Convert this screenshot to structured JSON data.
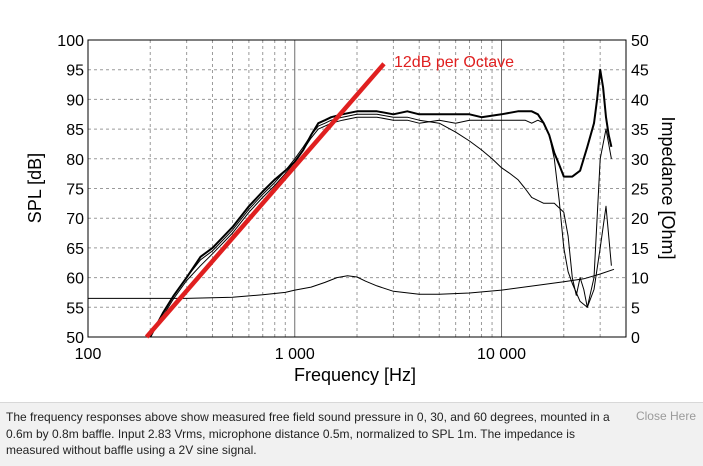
{
  "chart_data": {
    "type": "line",
    "x_scale": "log",
    "xlim": [
      100,
      40000
    ],
    "ylim": [
      50,
      100
    ],
    "y2lim": [
      0,
      50
    ],
    "xlabel": "Frequency [Hz]",
    "ylabel": "SPL [dB]",
    "y2label": "Impedance [Ohm]",
    "x_ticks": [
      100,
      1000,
      10000
    ],
    "x_tick_labels": [
      "100",
      "1 000",
      "10 000"
    ],
    "y_ticks": [
      100,
      95,
      90,
      85,
      80,
      75,
      70,
      65,
      60,
      55,
      50
    ],
    "y2_ticks": [
      50,
      45,
      40,
      35,
      30,
      25,
      20,
      15,
      10,
      5,
      0
    ],
    "grid": true,
    "annotation": {
      "text": "12dB per Octave",
      "color": "#e02020",
      "line": {
        "x": [
          192,
          2700
        ],
        "y": [
          50,
          96
        ]
      }
    },
    "series": [
      {
        "axis": "left",
        "color": "#000000",
        "width": 2.0,
        "x": [
          200,
          230,
          260,
          300,
          350,
          400,
          500,
          600,
          700,
          800,
          900,
          1000,
          1100,
          1200,
          1300,
          1400,
          1500,
          1700,
          2000,
          2500,
          3000,
          3500,
          4000,
          5000,
          6000,
          7000,
          8000,
          10000,
          12000,
          14000,
          15000,
          16000,
          17000,
          18000,
          19000,
          20000,
          22000,
          24000,
          26000,
          28000,
          29000,
          30000,
          31000,
          32000,
          33000,
          34000
        ],
        "y": [
          50,
          54,
          57,
          60,
          63.5,
          65,
          68.5,
          72,
          74.5,
          76.5,
          78,
          79.5,
          81.5,
          84,
          86,
          86.5,
          87,
          87.5,
          88,
          88,
          87.5,
          88,
          87.5,
          87.5,
          87.5,
          87.5,
          87,
          87.5,
          88,
          88,
          87.5,
          86,
          84,
          81,
          79,
          77,
          77,
          78,
          82,
          86,
          90,
          95,
          92,
          87,
          84,
          82
        ]
      },
      {
        "axis": "left",
        "color": "#000000",
        "width": 1.0,
        "x": [
          200,
          230,
          260,
          300,
          350,
          400,
          500,
          600,
          700,
          800,
          900,
          1000,
          1100,
          1200,
          1300,
          1400,
          1500,
          1700,
          2000,
          2500,
          3000,
          3500,
          4000,
          5000,
          6000,
          7000,
          8000,
          9000,
          10000,
          11000,
          12000,
          13000,
          14000,
          16000,
          18000,
          20000,
          21000,
          22000,
          23000,
          24000,
          25000,
          26000,
          28000,
          30000,
          32000,
          34000
        ],
        "y": [
          50,
          54,
          57,
          60,
          63,
          64.5,
          68,
          71.5,
          74,
          76,
          78,
          80,
          82,
          84,
          85.5,
          86,
          86.5,
          87,
          87.5,
          87.5,
          87,
          87,
          86.5,
          86,
          84.5,
          83,
          81.5,
          80,
          78.5,
          77.5,
          76.5,
          75,
          73.5,
          72.5,
          72.5,
          71,
          67,
          60,
          57,
          60,
          58,
          55,
          60,
          80,
          85,
          80
        ]
      },
      {
        "axis": "left",
        "color": "#000000",
        "width": 1.0,
        "x": [
          200,
          230,
          260,
          300,
          350,
          400,
          500,
          600,
          700,
          800,
          900,
          1000,
          1100,
          1200,
          1300,
          1400,
          1500,
          1700,
          2000,
          2500,
          3000,
          3500,
          4000,
          5000,
          6000,
          7000,
          8000,
          9000,
          10000,
          11000,
          12000,
          13000,
          14000,
          15000,
          16000,
          17000,
          18000,
          19000,
          20000,
          21000,
          22000,
          24000,
          26000,
          28000,
          30000,
          32000,
          34000
        ],
        "y": [
          50,
          53.5,
          56.5,
          59.5,
          62,
          64,
          67.5,
          71,
          73.5,
          75.5,
          77.5,
          79.5,
          81.5,
          83.5,
          85,
          85.5,
          86,
          86.5,
          87,
          87,
          86.5,
          86.5,
          86,
          86.5,
          86,
          86.5,
          86.5,
          86.5,
          86.5,
          86.5,
          86.5,
          86.5,
          86,
          86.5,
          86,
          84,
          80,
          73,
          65,
          61,
          59,
          56,
          55,
          58,
          65,
          72,
          62
        ]
      },
      {
        "axis": "right",
        "color": "#000000",
        "width": 1.0,
        "x": [
          100,
          200,
          300,
          500,
          700,
          900,
          1000,
          1200,
          1400,
          1600,
          1800,
          2000,
          2200,
          2500,
          3000,
          4000,
          5000,
          7000,
          10000,
          15000,
          20000,
          25000,
          30000,
          35000
        ],
        "y": [
          6.5,
          6.5,
          6.5,
          6.7,
          7.1,
          7.5,
          7.9,
          8.4,
          9.2,
          10.0,
          10.3,
          10.1,
          9.4,
          8.6,
          7.7,
          7.2,
          7.2,
          7.4,
          7.9,
          8.7,
          9.3,
          9.8,
          10.6,
          11.4
        ]
      }
    ]
  },
  "caption": "The frequency responses above show measured free field sound pressure in 0, 30, and 60 degrees, mounted in a 0.6m by 0.8m baffle. Input 2.83 Vrms, microphone distance 0.5m, normalized to SPL 1m. The impedance is measured without baffle using a 2V sine signal.",
  "close_label": "Close Here"
}
